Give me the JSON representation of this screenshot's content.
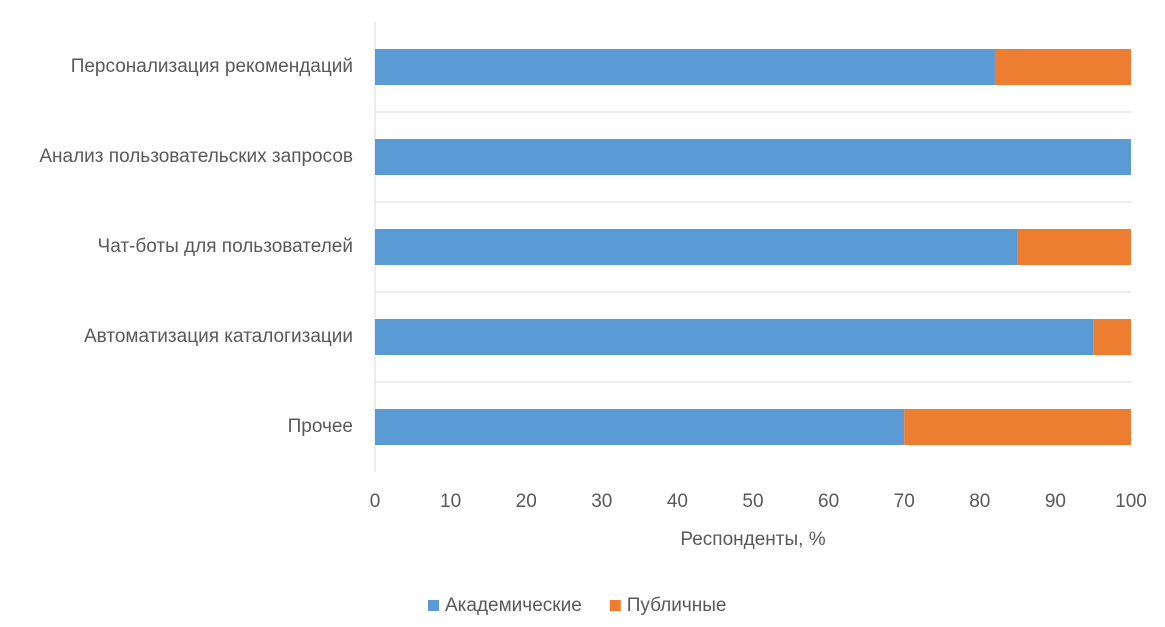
{
  "chart_data": {
    "type": "stacked-barh",
    "categories": [
      "Персонализация рекомендаций",
      "Анализ пользовательских запросов",
      "Чат-боты для пользователей",
      "Автоматизация каталогизации",
      "Прочее"
    ],
    "series": [
      {
        "name": "Академические",
        "color": "#5b9bd5",
        "values": [
          82,
          100,
          85,
          95,
          70
        ]
      },
      {
        "name": "Публичные",
        "color": "#ed7d31",
        "values": [
          18,
          0,
          15,
          5,
          30
        ]
      }
    ],
    "xlim": [
      0,
      100
    ],
    "xticks": [
      0,
      10,
      20,
      30,
      40,
      50,
      60,
      70,
      80,
      90,
      100
    ],
    "x_label": "Респонденты, %",
    "legend": "bottom"
  }
}
